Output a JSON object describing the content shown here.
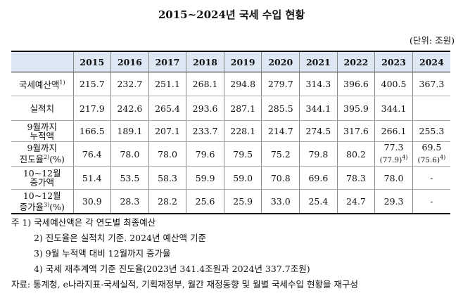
{
  "title": "2015~2024년 국세 수입 현황",
  "unit": "(단위: 조원)",
  "table": {
    "header": [
      "",
      "2015",
      "2016",
      "2017",
      "2018",
      "2019",
      "2020",
      "2021",
      "2022",
      "2023",
      "2024"
    ],
    "rows": [
      {
        "label": "국세예산액",
        "sup": "1)",
        "values": [
          "215.7",
          "232.7",
          "251.1",
          "268.1",
          "294.8",
          "279.7",
          "314.3",
          "396.6",
          "400.5",
          "367.3"
        ]
      },
      {
        "label": "실적치",
        "values": [
          "217.9",
          "242.6",
          "265.4",
          "293.6",
          "287.1",
          "285.5",
          "344.1",
          "395.9",
          "344.1",
          ""
        ]
      },
      {
        "label_line1": "9월까지",
        "label_line2": "누적액",
        "values": [
          "166.5",
          "189.1",
          "207.1",
          "233.7",
          "228.1",
          "214.7",
          "274.5",
          "317.6",
          "266.1",
          "255.3"
        ]
      },
      {
        "label_line1": "9월까지",
        "label_line2": "진도율",
        "sup": "2)",
        "label_suffix": "(%)",
        "values": [
          "76.4",
          "78.0",
          "78.0",
          "79.6",
          "79.5",
          "75.2",
          "79.8",
          "80.2",
          "77.3",
          "69.5"
        ],
        "sub_values": {
          "2023": "(77.9)",
          "2024": "(75.6)"
        },
        "sub_sup": "4)"
      },
      {
        "label_line1": "10~12월",
        "label_line2": "증가액",
        "values": [
          "51.4",
          "53.5",
          "58.3",
          "59.9",
          "59.0",
          "70.8",
          "69.6",
          "78.3",
          "78.0",
          "-"
        ]
      },
      {
        "label_line1": "10~12월",
        "label_line2": "증가율",
        "sup": "3)",
        "label_suffix": "(%)",
        "values": [
          "30.9",
          "28.3",
          "28.2",
          "25.6",
          "25.9",
          "33.0",
          "25.4",
          "24.7",
          "29.3",
          "-"
        ]
      }
    ]
  },
  "notes": [
    "주 1) 국세예산액은 각 연도별 최종예산",
    "2) 진도율은 실적치 기준. 2024년 예산액 기준",
    "3) 9월 누적액 대비 12월까지 증가율",
    "4) 국세 재추계액 기준 진도율(2023년 341.4조원과 2024년 337.7조원)"
  ],
  "source": "자료: 통계청, e나라지표-국세실적, 기획재정부, 월간 재정동향 및 월별 국세수입 현황을 재구성"
}
